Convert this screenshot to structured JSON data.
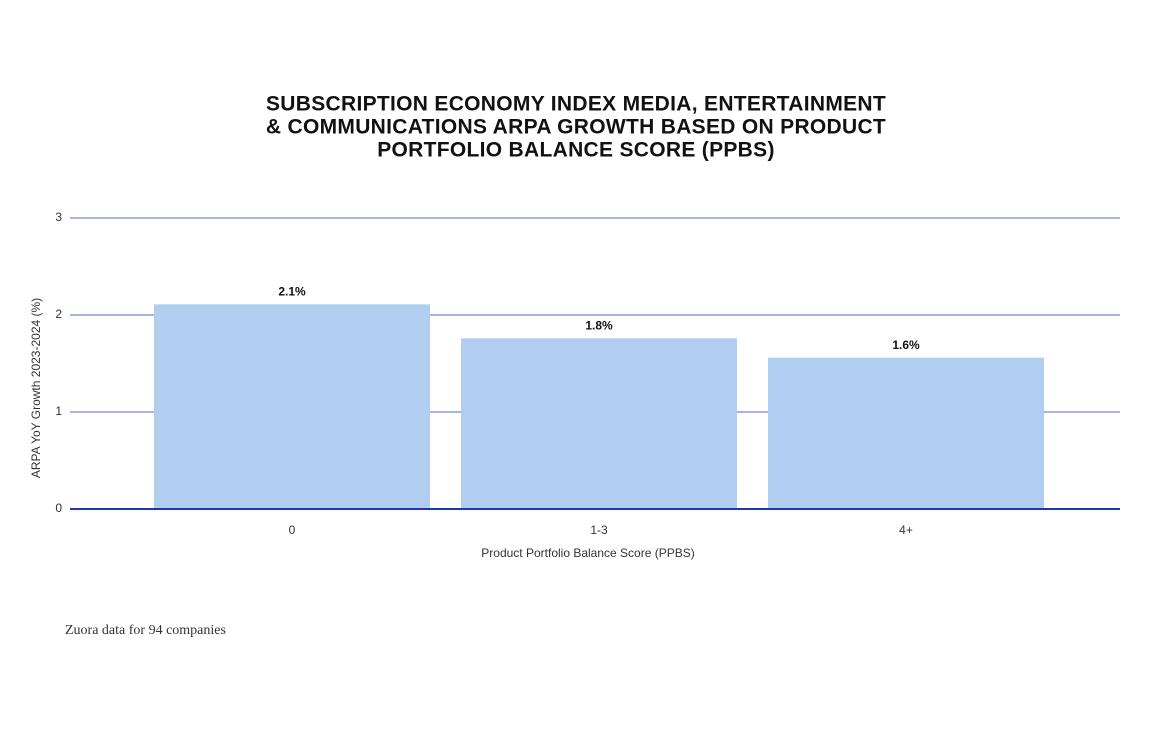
{
  "chart_data": {
    "type": "bar",
    "title": [
      "SUBSCRIPTION ECONOMY INDEX MEDIA, ENTERTAINMENT",
      "& COMMUNICATIONS ARPA GROWTH BASED ON PRODUCT",
      "PORTFOLIO BALANCE SCORE (PPBS)"
    ],
    "categories": [
      "0",
      "1-3",
      "4+"
    ],
    "values": [
      2.11,
      1.76,
      1.56
    ],
    "value_labels": [
      "2.1%",
      "1.8%",
      "1.6%"
    ],
    "color": "#b1cef1",
    "ylim": [
      0,
      3
    ],
    "yticks": [
      0,
      1,
      2,
      3
    ],
    "grid": true,
    "xlabel": "Product Portfolio Balance Score (PPBS)",
    "ylabel": "ARPA YoY Growth 2023-2024 (%)",
    "note": "Zuora data for 94 companies"
  }
}
